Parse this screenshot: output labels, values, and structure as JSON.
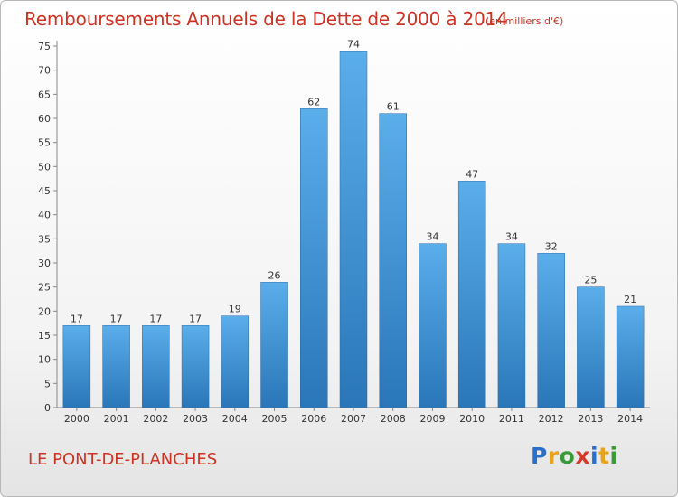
{
  "title": "Remboursements Annuels de la Dette de 2000 à 2014",
  "unit_note": "(en milliers d'€)",
  "place": "LE PONT-DE-PLANCHES",
  "logo": {
    "letters": [
      "P",
      "r",
      "o",
      "x",
      "i",
      "t",
      "i"
    ],
    "colors": [
      "#2a6fc9",
      "#e8a21c",
      "#3a9a3a",
      "#d43a2a",
      "#2a6fc9",
      "#e8a21c",
      "#3a9a3a"
    ]
  },
  "colors": {
    "bar_top": "#5aaeea",
    "bar_bottom": "#2a76b8",
    "text_accent": "#cc3322"
  },
  "chart_data": {
    "type": "bar",
    "categories": [
      "2000",
      "2001",
      "2002",
      "2003",
      "2004",
      "2005",
      "2006",
      "2007",
      "2008",
      "2009",
      "2010",
      "2011",
      "2012",
      "2013",
      "2014"
    ],
    "values": [
      17,
      17,
      17,
      17,
      19,
      26,
      62,
      74,
      61,
      34,
      47,
      34,
      32,
      25,
      21
    ],
    "title": "Remboursements Annuels de la Dette de 2000 à 2014",
    "xlabel": "",
    "ylabel": "",
    "ylim": [
      0,
      75
    ],
    "yticks": [
      0,
      5,
      10,
      15,
      20,
      25,
      30,
      35,
      40,
      45,
      50,
      55,
      60,
      65,
      70,
      75
    ],
    "grid": false,
    "data_labels": true
  }
}
